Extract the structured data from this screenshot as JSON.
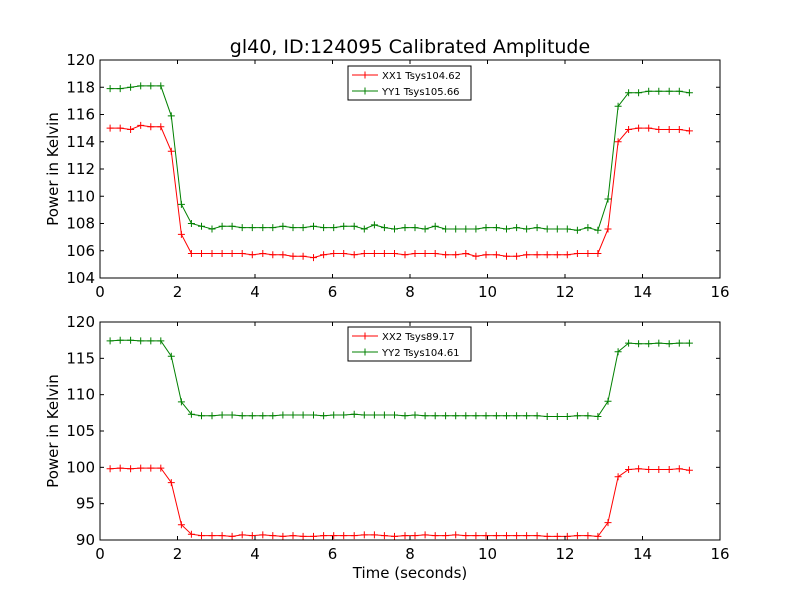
{
  "figure": {
    "title": "gl40, ID:124095 Calibrated Amplitude",
    "shared_xlabel": "Time (seconds)"
  },
  "chart_data": [
    {
      "type": "line",
      "title": "gl40, ID:124095 Calibrated Amplitude",
      "xlabel": "",
      "ylabel": "Power in Kelvin",
      "xlim": [
        0,
        16
      ],
      "ylim": [
        104,
        120
      ],
      "xticks": [
        0,
        2,
        4,
        6,
        8,
        10,
        12,
        14,
        16
      ],
      "yticks": [
        104,
        106,
        108,
        110,
        112,
        114,
        116,
        118,
        120
      ],
      "grid": false,
      "legend_position": "top-center",
      "x": [
        0.26,
        0.52,
        0.79,
        1.05,
        1.31,
        1.57,
        1.84,
        2.1,
        2.36,
        2.62,
        2.89,
        3.15,
        3.41,
        3.67,
        3.93,
        4.2,
        4.46,
        4.72,
        4.98,
        5.24,
        5.51,
        5.77,
        6.03,
        6.29,
        6.56,
        6.82,
        7.08,
        7.34,
        7.6,
        7.87,
        8.13,
        8.39,
        8.65,
        8.92,
        9.18,
        9.44,
        9.7,
        9.96,
        10.23,
        10.49,
        10.75,
        11.01,
        11.28,
        11.54,
        11.8,
        12.06,
        12.32,
        12.59,
        12.85,
        13.11,
        13.37,
        13.64,
        13.9,
        14.16,
        14.42,
        14.69,
        14.95,
        15.21
      ],
      "series": [
        {
          "name": "XX1 Tsys104.62",
          "color": "#ff0000",
          "values": [
            115.0,
            115.0,
            114.9,
            115.2,
            115.1,
            115.1,
            113.3,
            107.2,
            105.8,
            105.8,
            105.8,
            105.8,
            105.8,
            105.8,
            105.7,
            105.8,
            105.7,
            105.7,
            105.6,
            105.6,
            105.5,
            105.7,
            105.8,
            105.8,
            105.7,
            105.8,
            105.8,
            105.8,
            105.8,
            105.7,
            105.8,
            105.8,
            105.8,
            105.7,
            105.7,
            105.8,
            105.6,
            105.7,
            105.7,
            105.6,
            105.6,
            105.7,
            105.7,
            105.7,
            105.7,
            105.7,
            105.8,
            105.8,
            105.8,
            107.6,
            114.0,
            114.9,
            115.0,
            115.0,
            114.9,
            114.9,
            114.9,
            114.8
          ]
        },
        {
          "name": "YY1 Tsys105.66",
          "color": "#008000",
          "values": [
            117.9,
            117.9,
            118.0,
            118.1,
            118.1,
            118.1,
            115.9,
            109.4,
            108.0,
            107.8,
            107.6,
            107.8,
            107.8,
            107.7,
            107.7,
            107.7,
            107.7,
            107.8,
            107.7,
            107.7,
            107.8,
            107.7,
            107.7,
            107.8,
            107.8,
            107.6,
            107.9,
            107.7,
            107.6,
            107.7,
            107.7,
            107.6,
            107.8,
            107.6,
            107.6,
            107.6,
            107.6,
            107.7,
            107.7,
            107.6,
            107.7,
            107.6,
            107.7,
            107.6,
            107.6,
            107.6,
            107.5,
            107.7,
            107.5,
            109.8,
            116.6,
            117.6,
            117.6,
            117.7,
            117.7,
            117.7,
            117.7,
            117.6
          ]
        }
      ]
    },
    {
      "type": "line",
      "title": "",
      "xlabel": "Time (seconds)",
      "ylabel": "Power in Kelvin",
      "xlim": [
        0,
        16
      ],
      "ylim": [
        90,
        120
      ],
      "xticks": [
        0,
        2,
        4,
        6,
        8,
        10,
        12,
        14,
        16
      ],
      "yticks": [
        90,
        95,
        100,
        105,
        110,
        115,
        120
      ],
      "grid": false,
      "legend_position": "top-center",
      "x": [
        0.26,
        0.52,
        0.79,
        1.05,
        1.31,
        1.57,
        1.84,
        2.1,
        2.36,
        2.62,
        2.89,
        3.15,
        3.41,
        3.67,
        3.93,
        4.2,
        4.46,
        4.72,
        4.98,
        5.24,
        5.51,
        5.77,
        6.03,
        6.29,
        6.56,
        6.82,
        7.08,
        7.34,
        7.6,
        7.87,
        8.13,
        8.39,
        8.65,
        8.92,
        9.18,
        9.44,
        9.7,
        9.96,
        10.23,
        10.49,
        10.75,
        11.01,
        11.28,
        11.54,
        11.8,
        12.06,
        12.32,
        12.59,
        12.85,
        13.11,
        13.37,
        13.64,
        13.9,
        14.16,
        14.42,
        14.69,
        14.95,
        15.21
      ],
      "series": [
        {
          "name": "XX2 Tsys89.17",
          "color": "#ff0000",
          "values": [
            99.8,
            99.9,
            99.8,
            99.9,
            99.9,
            99.9,
            97.9,
            92.1,
            90.8,
            90.6,
            90.6,
            90.6,
            90.5,
            90.7,
            90.6,
            90.7,
            90.6,
            90.5,
            90.6,
            90.5,
            90.5,
            90.6,
            90.6,
            90.6,
            90.6,
            90.7,
            90.7,
            90.6,
            90.5,
            90.6,
            90.6,
            90.7,
            90.6,
            90.6,
            90.7,
            90.6,
            90.6,
            90.6,
            90.6,
            90.6,
            90.6,
            90.6,
            90.6,
            90.5,
            90.5,
            90.5,
            90.6,
            90.6,
            90.5,
            92.4,
            98.7,
            99.7,
            99.8,
            99.7,
            99.7,
            99.7,
            99.8,
            99.6
          ]
        },
        {
          "name": "YY2 Tsys104.61",
          "color": "#008000",
          "values": [
            117.4,
            117.5,
            117.5,
            117.4,
            117.4,
            117.4,
            115.3,
            109.0,
            107.3,
            107.1,
            107.1,
            107.2,
            107.2,
            107.1,
            107.1,
            107.1,
            107.1,
            107.2,
            107.2,
            107.2,
            107.2,
            107.1,
            107.2,
            107.2,
            107.3,
            107.2,
            107.2,
            107.2,
            107.2,
            107.1,
            107.2,
            107.1,
            107.1,
            107.1,
            107.1,
            107.1,
            107.1,
            107.1,
            107.1,
            107.1,
            107.1,
            107.1,
            107.1,
            107.0,
            107.0,
            107.0,
            107.1,
            107.1,
            107.0,
            109.1,
            115.9,
            117.1,
            117.0,
            117.0,
            117.1,
            117.0,
            117.1,
            117.1
          ]
        }
      ]
    }
  ]
}
